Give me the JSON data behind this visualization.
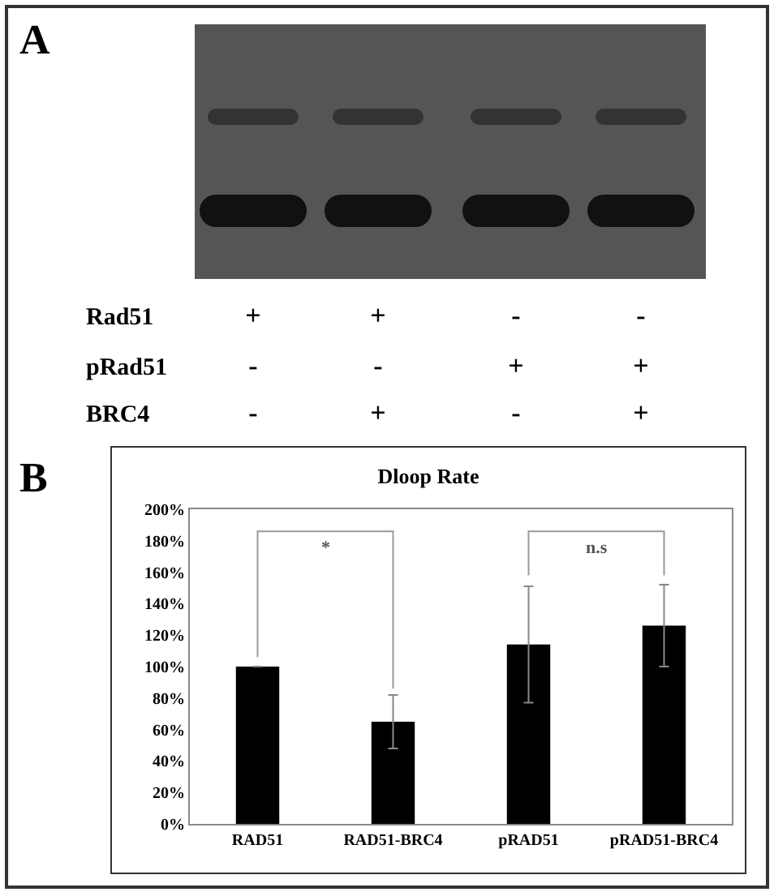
{
  "chart_data": [
    {
      "type": "other",
      "title": "A",
      "y_categories": [
        "Rad51",
        "pRad51",
        "BRC4"
      ],
      "cell_labels": [
        [
          "+",
          "+",
          "-",
          "-"
        ],
        [
          "-",
          "-",
          "+",
          "+"
        ],
        [
          "-",
          "+",
          "-",
          "+"
        ]
      ]
    },
    {
      "type": "bar",
      "title": "Dloop Rate",
      "annotations": [
        "B",
        "*",
        "n.s"
      ],
      "categories": [
        "RAD51",
        "RAD51-BRC4",
        "pRAD51",
        "pRAD51-BRC4"
      ],
      "values": [
        100,
        65,
        114,
        126
      ],
      "color": "#000000",
      "errors": [
        null,
        17,
        37,
        26
      ],
      "ylim": [
        0,
        200
      ],
      "yticks": [
        {
          "value": 0,
          "label": "0%"
        },
        {
          "value": 20,
          "label": "20%"
        },
        {
          "value": 40,
          "label": "40%"
        },
        {
          "value": 60,
          "label": "60%"
        },
        {
          "value": 80,
          "label": "80%"
        },
        {
          "value": 100,
          "label": "100%"
        },
        {
          "value": 120,
          "label": "120%"
        },
        {
          "value": 140,
          "label": "140%"
        },
        {
          "value": 160,
          "label": "160%"
        },
        {
          "value": 180,
          "label": "180%"
        },
        {
          "value": 200,
          "label": "200%"
        }
      ],
      "grid": false,
      "legend": false
    }
  ]
}
